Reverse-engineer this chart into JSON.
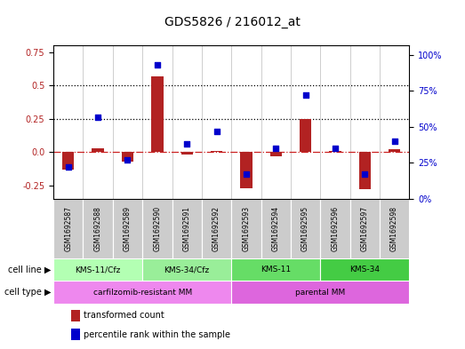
{
  "title": "GDS5826 / 216012_at",
  "samples": [
    "GSM1692587",
    "GSM1692588",
    "GSM1692589",
    "GSM1692590",
    "GSM1692591",
    "GSM1692592",
    "GSM1692593",
    "GSM1692594",
    "GSM1692595",
    "GSM1692596",
    "GSM1692597",
    "GSM1692598"
  ],
  "transformed_count": [
    -0.13,
    0.03,
    -0.07,
    0.57,
    -0.02,
    0.01,
    -0.27,
    -0.03,
    0.25,
    0.01,
    -0.28,
    0.02
  ],
  "percentile_rank": [
    0.22,
    0.57,
    0.27,
    0.93,
    0.38,
    0.47,
    0.17,
    0.35,
    0.72,
    0.35,
    0.17,
    0.4
  ],
  "bar_color": "#b22222",
  "dot_color": "#0000cc",
  "zero_line_color": "#cc2222",
  "grid_line_color": "#000000",
  "cell_line_groups": [
    {
      "label": "KMS-11/Cfz",
      "start": 0,
      "end": 3,
      "color": "#b3ffb3"
    },
    {
      "label": "KMS-34/Cfz",
      "start": 3,
      "end": 6,
      "color": "#99ee99"
    },
    {
      "label": "KMS-11",
      "start": 6,
      "end": 9,
      "color": "#66dd66"
    },
    {
      "label": "KMS-34",
      "start": 9,
      "end": 12,
      "color": "#44cc44"
    }
  ],
  "cell_type_groups": [
    {
      "label": "carfilzomib-resistant MM",
      "start": 0,
      "end": 6,
      "color": "#ee88ee"
    },
    {
      "label": "parental MM",
      "start": 6,
      "end": 12,
      "color": "#dd66dd"
    }
  ],
  "ylim_left": [
    -0.35,
    0.8
  ],
  "ylim_right": [
    0.0,
    1.066
  ],
  "yticks_left": [
    -0.25,
    0.0,
    0.25,
    0.5,
    0.75
  ],
  "yticks_right_vals": [
    0.0,
    0.25,
    0.5,
    0.75,
    1.0
  ],
  "ytick_labels_right": [
    "0%",
    "25%",
    "50%",
    "75%",
    "100%"
  ],
  "hlines": [
    0.25,
    0.5
  ],
  "bg_color": "#ffffff",
  "tick_label_bg": "#cccccc",
  "ax_border_color": "#888888"
}
